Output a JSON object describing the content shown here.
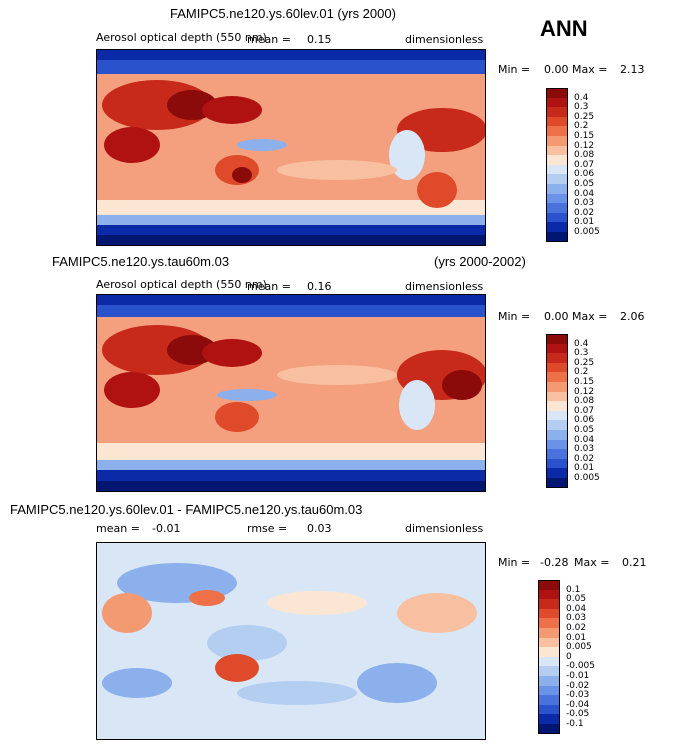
{
  "season": "ANN",
  "panels": [
    {
      "title": "FAMIPC5.ne120.ys.60lev.01 (yrs 2000)",
      "title_right": "",
      "left_label": "Aerosol optical depth (550 nm)",
      "mean_label": "mean =",
      "mean_value": "0.15",
      "rmse_label": "",
      "rmse_value": "",
      "units": "dimensionless",
      "min_label": "Min =",
      "min_value": "0.00",
      "max_label": "Max =",
      "max_value": "2.13",
      "levels": [
        "0.4",
        "0.3",
        "0.25",
        "0.2",
        "0.15",
        "0.12",
        "0.08",
        "0.07",
        "0.06",
        "0.05",
        "0.04",
        "0.03",
        "0.02",
        "0.01",
        "0.005"
      ]
    },
    {
      "title": "FAMIPC5.ne120.ys.tau60m.03",
      "title_right": "(yrs 2000-2002)",
      "left_label": "Aerosol optical depth (550 nm)",
      "mean_label": "mean =",
      "mean_value": "0.16",
      "rmse_label": "",
      "rmse_value": "",
      "units": "dimensionless",
      "min_label": "Min =",
      "min_value": "0.00",
      "max_label": "Max =",
      "max_value": "2.06",
      "levels": [
        "0.4",
        "0.3",
        "0.25",
        "0.2",
        "0.15",
        "0.12",
        "0.08",
        "0.07",
        "0.06",
        "0.05",
        "0.04",
        "0.03",
        "0.02",
        "0.01",
        "0.005"
      ]
    },
    {
      "title": "FAMIPC5.ne120.ys.60lev.01 - FAMIPC5.ne120.ys.tau60m.03",
      "title_right": "",
      "left_label": "",
      "mean_label": "mean =",
      "mean_value": "-0.01",
      "rmse_label": "rmse =",
      "rmse_value": "0.03",
      "units": "dimensionless",
      "min_label": "Min =",
      "min_value": "-0.28",
      "max_label": "Max =",
      "max_value": "0.21",
      "levels": [
        "0.1",
        "0.05",
        "0.04",
        "0.03",
        "0.02",
        "0.01",
        "0.005",
        "0",
        "-0.005",
        "-0.01",
        "-0.02",
        "-0.03",
        "-0.04",
        "-0.05",
        "-0.1"
      ]
    }
  ],
  "colors": {
    "aod_scale": [
      "#8b0a0a",
      "#b01212",
      "#c72a1a",
      "#de4a2a",
      "#ee7048",
      "#f49a72",
      "#f8c0a0",
      "#fbe6d4",
      "#d8e6f6",
      "#b4cef2",
      "#8cb0ec",
      "#6a92e6",
      "#4a72dc",
      "#2a52cc",
      "#0a2aa8",
      "#001670"
    ],
    "diff_scale": [
      "#8b0a0a",
      "#b01212",
      "#c72a1a",
      "#de4a2a",
      "#ee7048",
      "#f49a72",
      "#f8c0a0",
      "#fbe6d4",
      "#d8e6f6",
      "#b4cef2",
      "#8cb0ec",
      "#6a92e6",
      "#4a72dc",
      "#2a52cc",
      "#0a2aa8",
      "#001670"
    ]
  }
}
